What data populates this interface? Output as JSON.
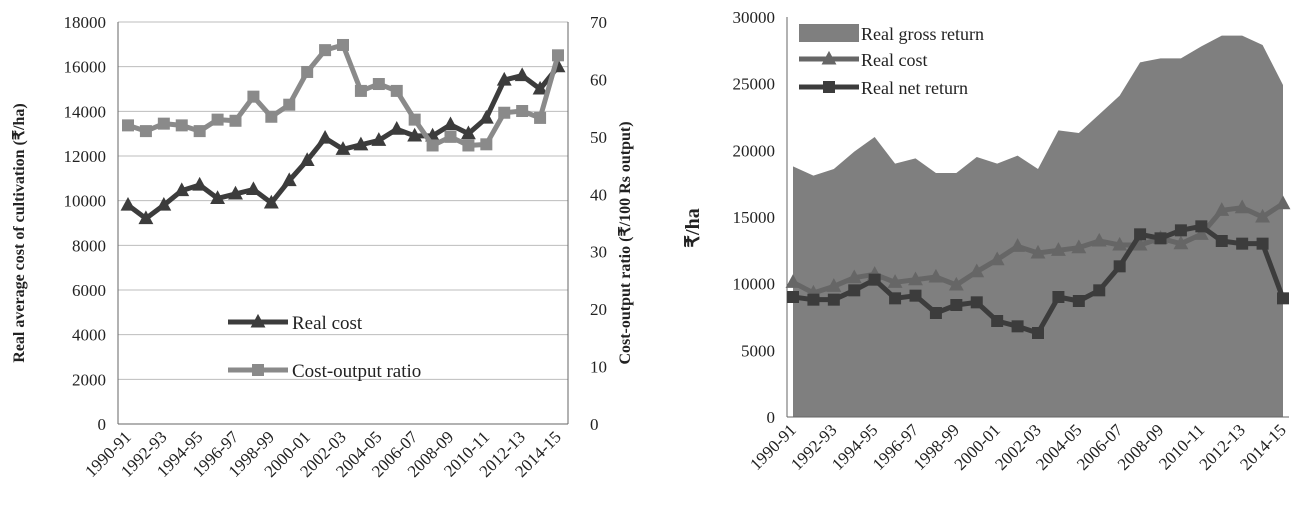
{
  "chart_data": [
    {
      "type": "line",
      "xlabel": "",
      "ylabel": "Real average cost of cultivation (₹/ha)",
      "y2label": "Cost-output ratio (₹/100 Rs output)",
      "ylim": [
        0,
        18000
      ],
      "y_ticks": [
        0,
        2000,
        4000,
        6000,
        8000,
        10000,
        12000,
        14000,
        16000,
        18000
      ],
      "y2lim": [
        0,
        70
      ],
      "y2_ticks": [
        0,
        10,
        20,
        30,
        40,
        50,
        60,
        70
      ],
      "x": [
        "1990-91",
        "1991-92",
        "1992-93",
        "1993-94",
        "1994-95",
        "1995-96",
        "1996-97",
        "1997-98",
        "1998-99",
        "1999-00",
        "2000-01",
        "2001-02",
        "2002-03",
        "2003-04",
        "2004-05",
        "2005-06",
        "2006-07",
        "2007-08",
        "2008-09",
        "2009-10",
        "2010-11",
        "2011-12",
        "2012-13",
        "2013-14",
        "2014-15"
      ],
      "x_tick_labels": [
        "1990-91",
        "1992-93",
        "1994-95",
        "1996-97",
        "1998-99",
        "2000-01",
        "2002-03",
        "2004-05",
        "2006-07",
        "2008-09",
        "2010-11",
        "2012-13",
        "2014-15"
      ],
      "grid": true,
      "legend_position": "bottom-center",
      "series": [
        {
          "name": "Real cost",
          "axis": "left",
          "marker": "triangle",
          "color": "#3c3c3c",
          "values": [
            9800,
            9200,
            9800,
            10450,
            10700,
            10100,
            10300,
            10500,
            9900,
            10900,
            11800,
            12800,
            12300,
            12500,
            12700,
            13200,
            12900,
            12900,
            13400,
            13000,
            13700,
            15400,
            15600,
            15000,
            16000
          ]
        },
        {
          "name": "Cost-output ratio",
          "axis": "right",
          "marker": "square",
          "color": "#8a8a8a",
          "values": [
            52,
            51,
            52.3,
            52,
            51,
            53,
            52.8,
            57,
            53.5,
            55.6,
            61.3,
            65.1,
            66,
            58,
            59.2,
            58,
            53,
            48.5,
            50,
            48.5,
            48.7,
            54.2,
            54.5,
            53.3,
            64.2
          ]
        }
      ]
    },
    {
      "type": "line",
      "xlabel": "",
      "ylabel": "₹/ha",
      "ylim": [
        0,
        30000
      ],
      "y_ticks": [
        0,
        5000,
        10000,
        15000,
        20000,
        25000,
        30000
      ],
      "x": [
        "1990-91",
        "1991-92",
        "1992-93",
        "1993-94",
        "1994-95",
        "1995-96",
        "1996-97",
        "1997-98",
        "1998-99",
        "1999-00",
        "2000-01",
        "2001-02",
        "2002-03",
        "2003-04",
        "2004-05",
        "2005-06",
        "2006-07",
        "2007-08",
        "2008-09",
        "2009-10",
        "2010-11",
        "2011-12",
        "2012-13",
        "2013-14",
        "2014-15"
      ],
      "x_tick_labels": [
        "1990-91",
        "1992-93",
        "1994-95",
        "1996-97",
        "1998-99",
        "2000-01",
        "2002-03",
        "2004-05",
        "2006-07",
        "2008-09",
        "2010-11",
        "2012-13",
        "2014-15"
      ],
      "grid": false,
      "legend_position": "top-left",
      "series": [
        {
          "name": "Real gross return",
          "kind": "area",
          "color": "#7f7f7f",
          "values": [
            18800,
            18100,
            18600,
            19900,
            21000,
            19000,
            19400,
            18300,
            18300,
            19500,
            19000,
            19600,
            18600,
            21500,
            21300,
            22700,
            24100,
            26600,
            26900,
            26900,
            27800,
            28600,
            28600,
            27900,
            24900
          ]
        },
        {
          "name": "Real cost",
          "kind": "line",
          "marker": "triangle",
          "color": "#666666",
          "values": [
            10100,
            9300,
            9800,
            10450,
            10700,
            10100,
            10300,
            10500,
            9900,
            10900,
            11800,
            12800,
            12300,
            12500,
            12700,
            13200,
            12900,
            12900,
            13400,
            13000,
            13700,
            15500,
            15700,
            15000,
            16000
          ]
        },
        {
          "name": "Real net return",
          "kind": "line",
          "marker": "square",
          "color": "#3c3c3c",
          "values": [
            9000,
            8800,
            8800,
            9500,
            10300,
            8900,
            9100,
            7800,
            8400,
            8600,
            7200,
            6800,
            6300,
            9000,
            8700,
            9500,
            11300,
            13700,
            13400,
            14000,
            14300,
            13200,
            13000,
            13000,
            8900
          ]
        }
      ]
    }
  ]
}
